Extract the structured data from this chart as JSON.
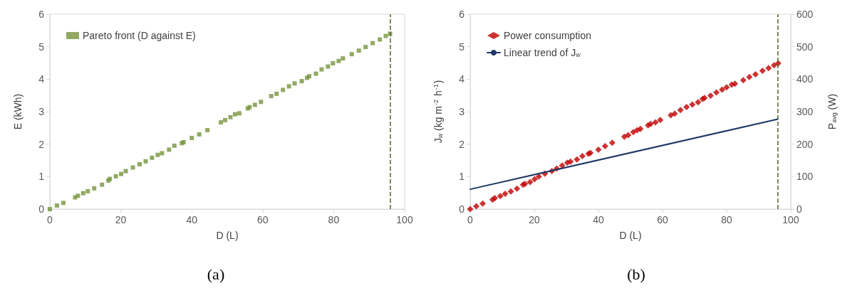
{
  "chart_data": [
    {
      "type": "scatter",
      "xlabel": "D (L)",
      "ylabel": "E (kWh)",
      "xlim": [
        0,
        100
      ],
      "xticks": [
        0,
        20,
        40,
        60,
        80,
        100
      ],
      "ylim": [
        0,
        6
      ],
      "yticks": [
        0,
        1,
        2,
        3,
        4,
        5,
        6
      ],
      "grid": false,
      "legend": "top left",
      "marker": "square",
      "annotations": [
        "(a)"
      ],
      "ref_lines": [
        {
          "axis": "x",
          "value": 96,
          "color": "#4f6228",
          "line_style": "dashed"
        }
      ],
      "series": [
        {
          "name": "Pareto front (D against E)",
          "color": "#77933c",
          "x": [
            0,
            2,
            3.8,
            7.1,
            7.9,
            9.4,
            10.7,
            12.5,
            14.7,
            16.5,
            16.9,
            18.6,
            20.1,
            21.4,
            23.4,
            25.3,
            27,
            28.8,
            30.4,
            31.6,
            33.6,
            35.1,
            37.2,
            37.7,
            40,
            42.1,
            44.4,
            48.2,
            49.4,
            50.9,
            52.2,
            53.4,
            55.8,
            56.3,
            57.8,
            59.5,
            62.4,
            63.9,
            65.7,
            67.4,
            69,
            71,
            72.5,
            73.1,
            75,
            76.6,
            78.4,
            79.8,
            81.4,
            82.6,
            85.1,
            87.1,
            89,
            91,
            93,
            94.7,
            95.9
          ],
          "values": [
            0,
            0.11,
            0.19,
            0.36,
            0.41,
            0.49,
            0.55,
            0.64,
            0.75,
            0.88,
            0.93,
            1.01,
            1.08,
            1.17,
            1.28,
            1.38,
            1.47,
            1.58,
            1.67,
            1.72,
            1.83,
            1.95,
            2.03,
            2.06,
            2.19,
            2.3,
            2.43,
            2.67,
            2.74,
            2.83,
            2.92,
            2.95,
            3.1,
            3.14,
            3.21,
            3.3,
            3.48,
            3.55,
            3.67,
            3.78,
            3.87,
            3.94,
            4.04,
            4.09,
            4.17,
            4.3,
            4.39,
            4.49,
            4.56,
            4.64,
            4.77,
            4.88,
            4.99,
            5.11,
            5.22,
            5.33,
            5.4
          ]
        }
      ]
    },
    {
      "type": "scatter",
      "xlabel": "D (L)",
      "ylabel": "J$_{w}$ (kg m$^{-2}$ h$^{-1}$)",
      "y2label": "P$_{avg}$ (W)",
      "xlim": [
        0,
        100
      ],
      "xticks": [
        0,
        20,
        40,
        60,
        80,
        100
      ],
      "ylim": [
        0,
        6
      ],
      "yticks": [
        0,
        1,
        2,
        3,
        4,
        5,
        6
      ],
      "y2lim": [
        0,
        600
      ],
      "y2ticks": [
        0,
        100,
        200,
        300,
        400,
        500,
        600
      ],
      "grid": false,
      "legend": "top left",
      "marker": "diamond",
      "annotations": [
        "(b)"
      ],
      "ref_lines": [
        {
          "axis": "x",
          "value": 96,
          "color": "#4f6228",
          "line_style": "dashed"
        }
      ],
      "series": [
        {
          "name": "Power consumption",
          "color": "#c00000",
          "axis": "y2",
          "x": [
            0,
            1.9,
            3.9,
            7,
            7.7,
            9.4,
            10.9,
            12.7,
            14.6,
            16.5,
            17.1,
            18.7,
            20.1,
            21.4,
            23.3,
            25.5,
            27,
            28.7,
            30.3,
            31.3,
            33.3,
            35,
            36.9,
            37.5,
            40,
            42.1,
            44.3,
            48.1,
            49.3,
            50.9,
            52.1,
            53.1,
            55.5,
            56.3,
            57.8,
            59.3,
            62.6,
            63.8,
            65.6,
            67.5,
            69.3,
            71.1,
            72.5,
            73.1,
            75,
            76.8,
            78.6,
            80,
            81.6,
            82.6,
            85.2,
            87.1,
            89,
            91.2,
            93.1,
            94.8,
            96.1
          ],
          "values": [
            0,
            9,
            17,
            29,
            34,
            40,
            47,
            54,
            63,
            75,
            78,
            83,
            92,
            100,
            109,
            117,
            125,
            134,
            143,
            146,
            153,
            163,
            170,
            173,
            183,
            194,
            204,
            223,
            228,
            237,
            243,
            247,
            258,
            262,
            267,
            274,
            289,
            294,
            305,
            314,
            322,
            329,
            339,
            342,
            349,
            359,
            368,
            375,
            383,
            386,
            397,
            407,
            415,
            426,
            434,
            443,
            449
          ]
        },
        {
          "name": "Linear trend of J$_{w}$",
          "type": "line",
          "color": "#1f3864",
          "line_style": "solid",
          "marker": "none",
          "x": [
            0,
            96
          ],
          "values": [
            0.61,
            2.77
          ]
        }
      ]
    }
  ]
}
